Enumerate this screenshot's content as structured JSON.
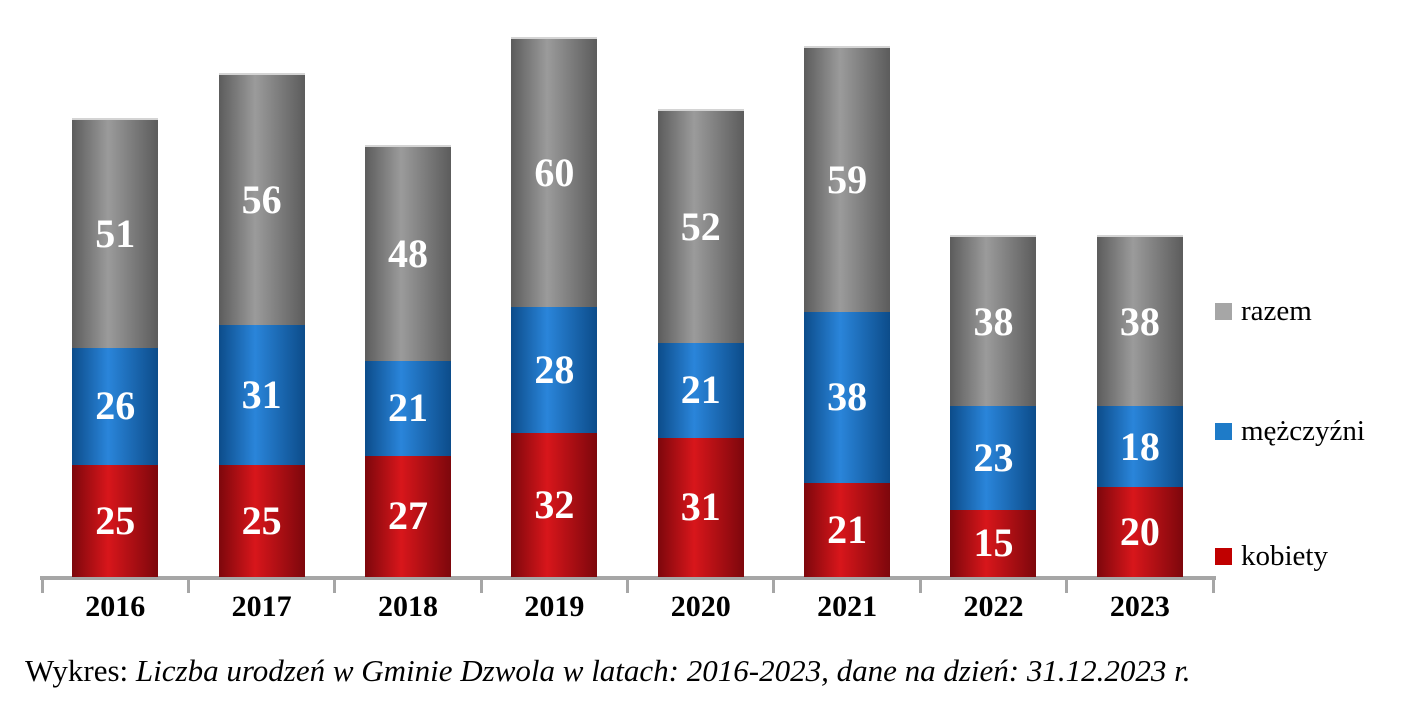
{
  "chart_data": {
    "type": "bar",
    "stacked": true,
    "title": "",
    "categories": [
      "2016",
      "2017",
      "2018",
      "2019",
      "2020",
      "2021",
      "2022",
      "2023"
    ],
    "series": [
      {
        "name": "kobiety",
        "values": [
          25,
          25,
          27,
          32,
          31,
          21,
          15,
          20
        ],
        "color": "#c00000",
        "edge_color": "#7d070c",
        "center_color": "#d8161b"
      },
      {
        "name": "mężczyźni",
        "values": [
          26,
          31,
          21,
          28,
          21,
          38,
          23,
          18
        ],
        "color": "#1e7bc8",
        "edge_color": "#0c4c8a",
        "center_color": "#2a85da"
      },
      {
        "name": "razem",
        "values": [
          51,
          56,
          48,
          60,
          52,
          59,
          38,
          38
        ],
        "color": "#a6a6a6",
        "edge_color": "#5c5c5c",
        "center_color": "#9b9b9b"
      }
    ],
    "stack_order_bottom_to_top": [
      "kobiety",
      "mężczyźni",
      "razem"
    ],
    "legend_position": "right",
    "legend_order_top_to_bottom": [
      "razem",
      "mężczyźni",
      "kobiety"
    ],
    "data_label_color": "#ffffff",
    "axis_color": "#a6a6a6",
    "grid": false,
    "xlabel": "",
    "ylabel": "",
    "value_axis_visible": false
  },
  "caption": {
    "prefix": "Wykres: ",
    "italic": "Liczba urodzeń w Gminie Dzwola w latach: 2016-2023, dane na dzień: 31.12.2023 r."
  }
}
